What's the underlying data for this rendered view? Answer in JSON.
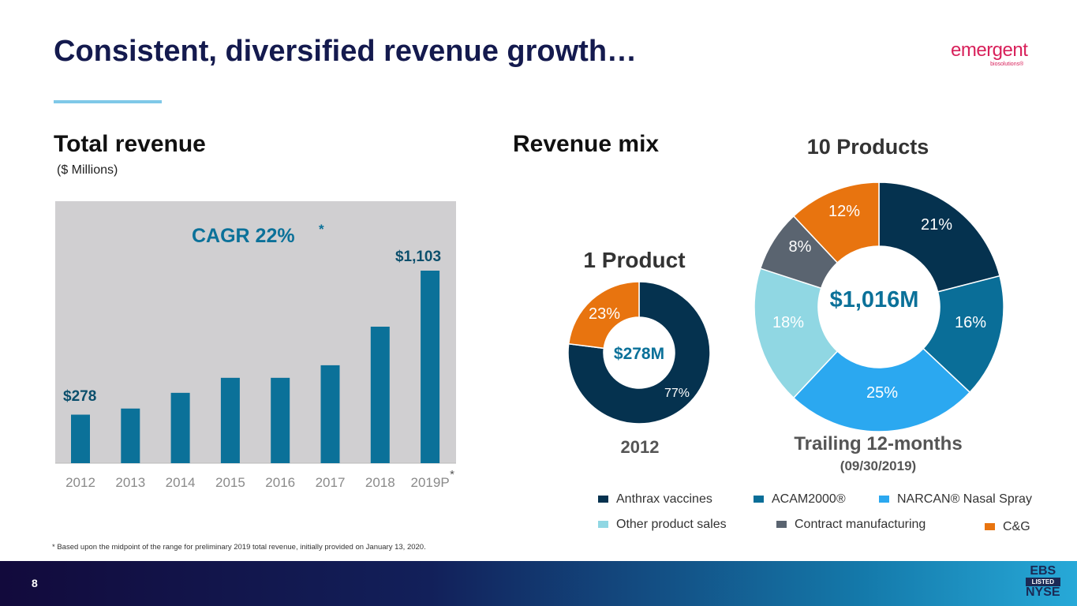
{
  "title": "Consistent, diversified revenue growth…",
  "logo": {
    "name": "emergent",
    "sub": "biosolutions®"
  },
  "left": {
    "heading": "Total revenue",
    "units": "($ Millions)",
    "cagr": "CAGR 22%",
    "cagr_mark": "*"
  },
  "right": {
    "heading": "Revenue mix",
    "products_left": "1 Product",
    "products_right": "10 Products",
    "year_left": "2012",
    "year_right": "Trailing 12-months",
    "date_right": "(09/30/2019)"
  },
  "chart_data": [
    {
      "type": "bar",
      "title": "Total revenue",
      "ylabel": "$ Millions",
      "categories": [
        "2012",
        "2013",
        "2014",
        "2015",
        "2016",
        "2017",
        "2018",
        "2019P"
      ],
      "category_marks": [
        "",
        "",
        "",
        "",
        "",
        "",
        "",
        "*"
      ],
      "values": [
        278,
        313,
        403,
        489,
        489,
        561,
        782,
        1103
      ],
      "data_labels": {
        "0": "$278",
        "7": "$1,103"
      },
      "ylim": [
        0,
        1200
      ],
      "color": "#0b7199",
      "background": "#d0cfd1"
    },
    {
      "type": "pie",
      "title": "2012",
      "center_label": "$278M",
      "slices": [
        {
          "name": "Anthrax vaccines",
          "value": 77,
          "label": "77%",
          "color": "#05324f"
        },
        {
          "name": "C&G",
          "value": 23,
          "label": "23%",
          "color": "#e8740f"
        }
      ]
    },
    {
      "type": "pie",
      "title": "Trailing 12-months (09/30/2019)",
      "center_label": "$1,016M",
      "slices": [
        {
          "name": "Anthrax vaccines",
          "value": 21,
          "label": "21%",
          "color": "#05324f"
        },
        {
          "name": "ACAM2000®",
          "value": 16,
          "label": "16%",
          "color": "#0a6e98"
        },
        {
          "name": "NARCAN® Nasal Spray",
          "value": 25,
          "label": "25%",
          "color": "#2ba8f0"
        },
        {
          "name": "Other product sales",
          "value": 18,
          "label": "18%",
          "color": "#90d7e3"
        },
        {
          "name": "Contract manufacturing",
          "value": 8,
          "label": "8%",
          "color": "#5a6470"
        },
        {
          "name": "C&G",
          "value": 12,
          "label": "12%",
          "color": "#e8740f"
        }
      ]
    }
  ],
  "legend": [
    {
      "label": "Anthrax vaccines",
      "color": "#05324f"
    },
    {
      "label": "ACAM2000®",
      "color": "#0a6e98"
    },
    {
      "label": "NARCAN® Nasal Spray",
      "color": "#2ba8f0"
    },
    {
      "label": "Other product sales",
      "color": "#90d7e3"
    },
    {
      "label": "Contract manufacturing",
      "color": "#5a6470"
    },
    {
      "label": "C&G",
      "color": "#e8740f"
    }
  ],
  "footnote": "* Based upon the midpoint of the range for preliminary 2019 total revenue, initially provided on January 13, 2020.",
  "page": "8",
  "badge": {
    "top": "EBS",
    "mid": "LISTED",
    "bottom": "NYSE"
  }
}
